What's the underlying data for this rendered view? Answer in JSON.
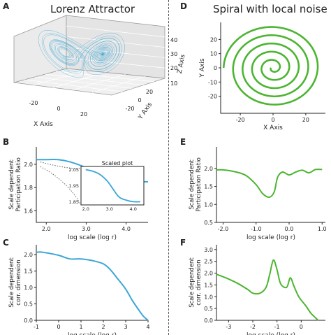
{
  "panels": {
    "A": {
      "letter": "A",
      "title": "Lorenz Attractor"
    },
    "D": {
      "letter": "D",
      "title": "Spiral with local noise"
    },
    "B": {
      "letter": "B"
    },
    "C": {
      "letter": "C"
    },
    "E": {
      "letter": "E"
    },
    "F": {
      "letter": "F"
    }
  },
  "colors": {
    "blue": "#3aa7d6",
    "green": "#4cb531",
    "gray": "#666666"
  },
  "chart_data": [
    {
      "id": "A",
      "type": "scatter",
      "title": "Lorenz Attractor",
      "xlabel": "X Axis",
      "ylabel": "Y Axis",
      "zlabel": "Z Axis",
      "xticks": [
        "-20",
        "0",
        "20"
      ],
      "yticks": [
        "-20",
        "0",
        "20"
      ],
      "zticks": [
        "10",
        "20",
        "30",
        "40"
      ]
    },
    {
      "id": "D",
      "type": "line",
      "title": "Spiral with local noise",
      "xlabel": "X Axis",
      "ylabel": "Y Axis",
      "xlim": [
        -32,
        32
      ],
      "ylim": [
        -32,
        32
      ],
      "xticks": [
        "-20",
        "0",
        "20"
      ],
      "yticks": [
        "-20",
        "-10",
        "0",
        "10",
        "20"
      ],
      "turns": 5,
      "r_max": 29
    },
    {
      "id": "B",
      "type": "line",
      "xlabel": "log scale (log r)",
      "ylabel": "Scale dependent\nParticipation Ratio",
      "xlim": [
        1.75,
        4.55
      ],
      "ylim": [
        1.5,
        2.15
      ],
      "xticks": [
        "2.0",
        "3.0",
        "4.0"
      ],
      "yticks": [
        "2.0",
        "1.8",
        "1.6"
      ],
      "x": [
        1.75,
        2.0,
        2.3,
        2.6,
        3.0,
        3.3,
        3.6,
        4.0,
        4.3,
        4.55
      ],
      "y": [
        2.04,
        2.04,
        2.04,
        2.02,
        1.97,
        1.91,
        1.87,
        1.85,
        1.85,
        1.85
      ],
      "inset": {
        "title": "Scaled plot",
        "xticks": [
          "2.0",
          "3.0",
          "4.0"
        ],
        "yticks": [
          "2.05",
          "1.95",
          "1.85"
        ],
        "x": [
          2.0,
          2.3,
          2.6,
          2.9,
          3.1,
          3.4,
          3.7,
          4.0,
          4.3
        ],
        "y": [
          2.05,
          2.04,
          2.02,
          1.98,
          1.94,
          1.88,
          1.86,
          1.85,
          1.85
        ]
      }
    },
    {
      "id": "C",
      "type": "line",
      "xlabel": "log scale (log r)",
      "ylabel": "Scale dependent\ncorr. dimension",
      "xlim": [
        -1,
        4
      ],
      "ylim": [
        0,
        2.3
      ],
      "xticks": [
        "-1",
        "0",
        "1",
        "2",
        "3",
        "4"
      ],
      "yticks": [
        "2.0",
        "1.5",
        "1.0",
        "0.5",
        "0.0"
      ],
      "x": [
        -1,
        -0.8,
        -0.5,
        0,
        0.5,
        1,
        1.5,
        2,
        2.3,
        2.6,
        3.0,
        3.3,
        3.6,
        3.8,
        4.0
      ],
      "y": [
        2.07,
        2.08,
        2.05,
        1.98,
        1.87,
        1.87,
        1.82,
        1.72,
        1.55,
        1.3,
        0.95,
        0.6,
        0.3,
        0.12,
        0.0
      ]
    },
    {
      "id": "E",
      "type": "line",
      "xlabel": "log scale (log r)",
      "ylabel": "Scale dependent\nParticipation Ratio",
      "xlim": [
        -2.2,
        1.1
      ],
      "ylim": [
        0.5,
        2.6
      ],
      "xticks": [
        "-2.0",
        "-1.0",
        "0.0",
        "1.0"
      ],
      "yticks": [
        "2.0",
        "1.5",
        "1.0",
        "0.5"
      ],
      "x": [
        -2.2,
        -2.0,
        -1.6,
        -1.3,
        -1.0,
        -0.8,
        -0.6,
        -0.45,
        -0.35,
        -0.2,
        0.0,
        0.2,
        0.4,
        0.6,
        0.8,
        1.0
      ],
      "y": [
        1.96,
        1.96,
        1.9,
        1.8,
        1.55,
        1.3,
        1.2,
        1.35,
        1.75,
        1.9,
        1.82,
        1.9,
        1.95,
        1.88,
        1.97,
        1.97
      ]
    },
    {
      "id": "F",
      "type": "line",
      "xlabel": "log scale (log r)",
      "ylabel": "Scale dependent\ncorr. dimension",
      "xlim": [
        -3.5,
        1.0
      ],
      "ylim": [
        0,
        3.2
      ],
      "xticks": [
        "-3",
        "-2",
        "-1",
        "0"
      ],
      "yticks": [
        "3.0",
        "2.5",
        "2.0",
        "1.5",
        "1.0",
        "0.5",
        "0.0"
      ],
      "x": [
        -3.5,
        -3.0,
        -2.6,
        -2.2,
        -2.0,
        -1.7,
        -1.45,
        -1.3,
        -1.15,
        -1.0,
        -0.85,
        -0.6,
        -0.45,
        -0.3,
        -0.1,
        0.2,
        0.4,
        0.6,
        0.7
      ],
      "y": [
        1.95,
        1.75,
        1.55,
        1.3,
        1.15,
        1.15,
        1.4,
        1.95,
        2.55,
        2.15,
        1.55,
        1.4,
        1.8,
        1.45,
        1.0,
        0.6,
        0.3,
        0.1,
        0.0
      ]
    }
  ]
}
